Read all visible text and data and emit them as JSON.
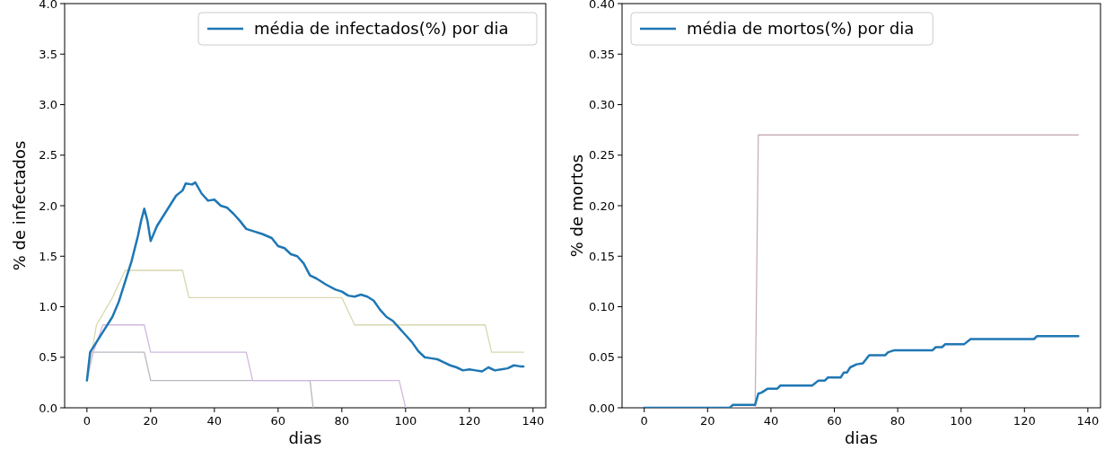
{
  "chart_data": [
    {
      "type": "line",
      "xlabel": "dias",
      "ylabel": "% de infectados",
      "xlim": [
        -7,
        144
      ],
      "xticks": [
        0,
        20,
        40,
        60,
        80,
        100,
        120,
        140
      ],
      "ylim": [
        0,
        4
      ],
      "yticks": [
        {
          "value": 0,
          "label": "0.0"
        },
        {
          "value": 0.5,
          "label": "0.5"
        },
        {
          "value": 1,
          "label": "1.0"
        },
        {
          "value": 1.5,
          "label": "1.5"
        },
        {
          "value": 2,
          "label": "2.0"
        },
        {
          "value": 2.5,
          "label": "2.5"
        },
        {
          "value": 3,
          "label": "3.0"
        },
        {
          "value": 3.5,
          "label": "3.5"
        },
        {
          "value": 4,
          "label": "4.0"
        }
      ],
      "legend": "top right",
      "grid": false,
      "series": [
        {
          "color": "#b8b8c0",
          "x": [
            0,
            1,
            18,
            20,
            70,
            71
          ],
          "values": [
            0.27,
            0.55,
            0.55,
            0.27,
            0.27,
            0
          ]
        },
        {
          "color": "#d0b8e0",
          "x": [
            0,
            2,
            5,
            18,
            20,
            50,
            52,
            98,
            100
          ],
          "values": [
            0.27,
            0.55,
            0.82,
            0.82,
            0.55,
            0.55,
            0.27,
            0.27,
            0
          ]
        },
        {
          "color": "#d8d8b0",
          "x": [
            0,
            3,
            8,
            12,
            30,
            32,
            80,
            84,
            125,
            127,
            137
          ],
          "values": [
            0.27,
            0.82,
            1.09,
            1.36,
            1.36,
            1.09,
            1.09,
            0.82,
            0.82,
            0.55,
            0.55
          ]
        },
        {
          "name": "média de infectados(%) por dia",
          "color": "#1f77b4",
          "x": [
            0,
            1,
            3,
            5,
            8,
            10,
            12,
            14,
            16,
            17,
            18,
            19,
            20,
            22,
            24,
            26,
            28,
            30,
            31,
            33,
            34,
            36,
            38,
            40,
            42,
            44,
            46,
            48,
            50,
            52,
            55,
            58,
            60,
            62,
            64,
            66,
            68,
            70,
            72,
            75,
            78,
            80,
            82,
            84,
            86,
            88,
            90,
            92,
            94,
            96,
            98,
            100,
            102,
            104,
            106,
            108,
            110,
            112,
            114,
            116,
            118,
            120,
            122,
            124,
            126,
            128,
            130,
            132,
            134,
            136,
            137
          ],
          "values": [
            0.27,
            0.55,
            0.65,
            0.75,
            0.9,
            1.05,
            1.25,
            1.45,
            1.7,
            1.85,
            1.97,
            1.85,
            1.65,
            1.8,
            1.9,
            2.0,
            2.1,
            2.15,
            2.22,
            2.21,
            2.23,
            2.12,
            2.05,
            2.06,
            2.0,
            1.98,
            1.92,
            1.85,
            1.77,
            1.75,
            1.72,
            1.68,
            1.6,
            1.58,
            1.52,
            1.5,
            1.43,
            1.31,
            1.28,
            1.22,
            1.17,
            1.15,
            1.11,
            1.1,
            1.12,
            1.1,
            1.06,
            0.97,
            0.9,
            0.86,
            0.79,
            0.72,
            0.65,
            0.56,
            0.5,
            0.49,
            0.48,
            0.45,
            0.42,
            0.4,
            0.37,
            0.38,
            0.37,
            0.36,
            0.4,
            0.37,
            0.38,
            0.39,
            0.42,
            0.41,
            0.41
          ]
        }
      ]
    },
    {
      "type": "line",
      "xlabel": "dias",
      "ylabel": "% de mortos",
      "xlim": [
        -7,
        144
      ],
      "xticks": [
        0,
        20,
        40,
        60,
        80,
        100,
        120,
        140
      ],
      "ylim": [
        0,
        0.4
      ],
      "yticks": [
        {
          "value": 0,
          "label": "0.00"
        },
        {
          "value": 0.05,
          "label": "0.05"
        },
        {
          "value": 0.1,
          "label": "0.10"
        },
        {
          "value": 0.15,
          "label": "0.15"
        },
        {
          "value": 0.2,
          "label": "0.20"
        },
        {
          "value": 0.25,
          "label": "0.25"
        },
        {
          "value": 0.3,
          "label": "0.30"
        },
        {
          "value": 0.35,
          "label": "0.35"
        },
        {
          "value": 0.4,
          "label": "0.40"
        }
      ],
      "legend": "top left",
      "grid": false,
      "series": [
        {
          "color": "#c8b0b8",
          "x": [
            0,
            35,
            36,
            137
          ],
          "values": [
            0,
            0,
            0.27,
            0.27
          ]
        },
        {
          "name": "média de mortos(%) por dia",
          "color": "#1f77b4",
          "x": [
            0,
            27,
            28,
            35,
            36,
            37,
            39,
            42,
            43,
            53,
            55,
            57,
            58,
            62,
            63,
            64,
            65,
            67,
            69,
            71,
            76,
            77,
            79,
            91,
            92,
            94,
            95,
            101,
            103,
            123,
            124,
            137
          ],
          "values": [
            0,
            0,
            0.003,
            0.003,
            0.014,
            0.015,
            0.019,
            0.019,
            0.022,
            0.022,
            0.027,
            0.027,
            0.03,
            0.03,
            0.035,
            0.035,
            0.04,
            0.043,
            0.044,
            0.052,
            0.052,
            0.055,
            0.057,
            0.057,
            0.06,
            0.06,
            0.063,
            0.063,
            0.068,
            0.068,
            0.071,
            0.071
          ]
        }
      ]
    }
  ]
}
